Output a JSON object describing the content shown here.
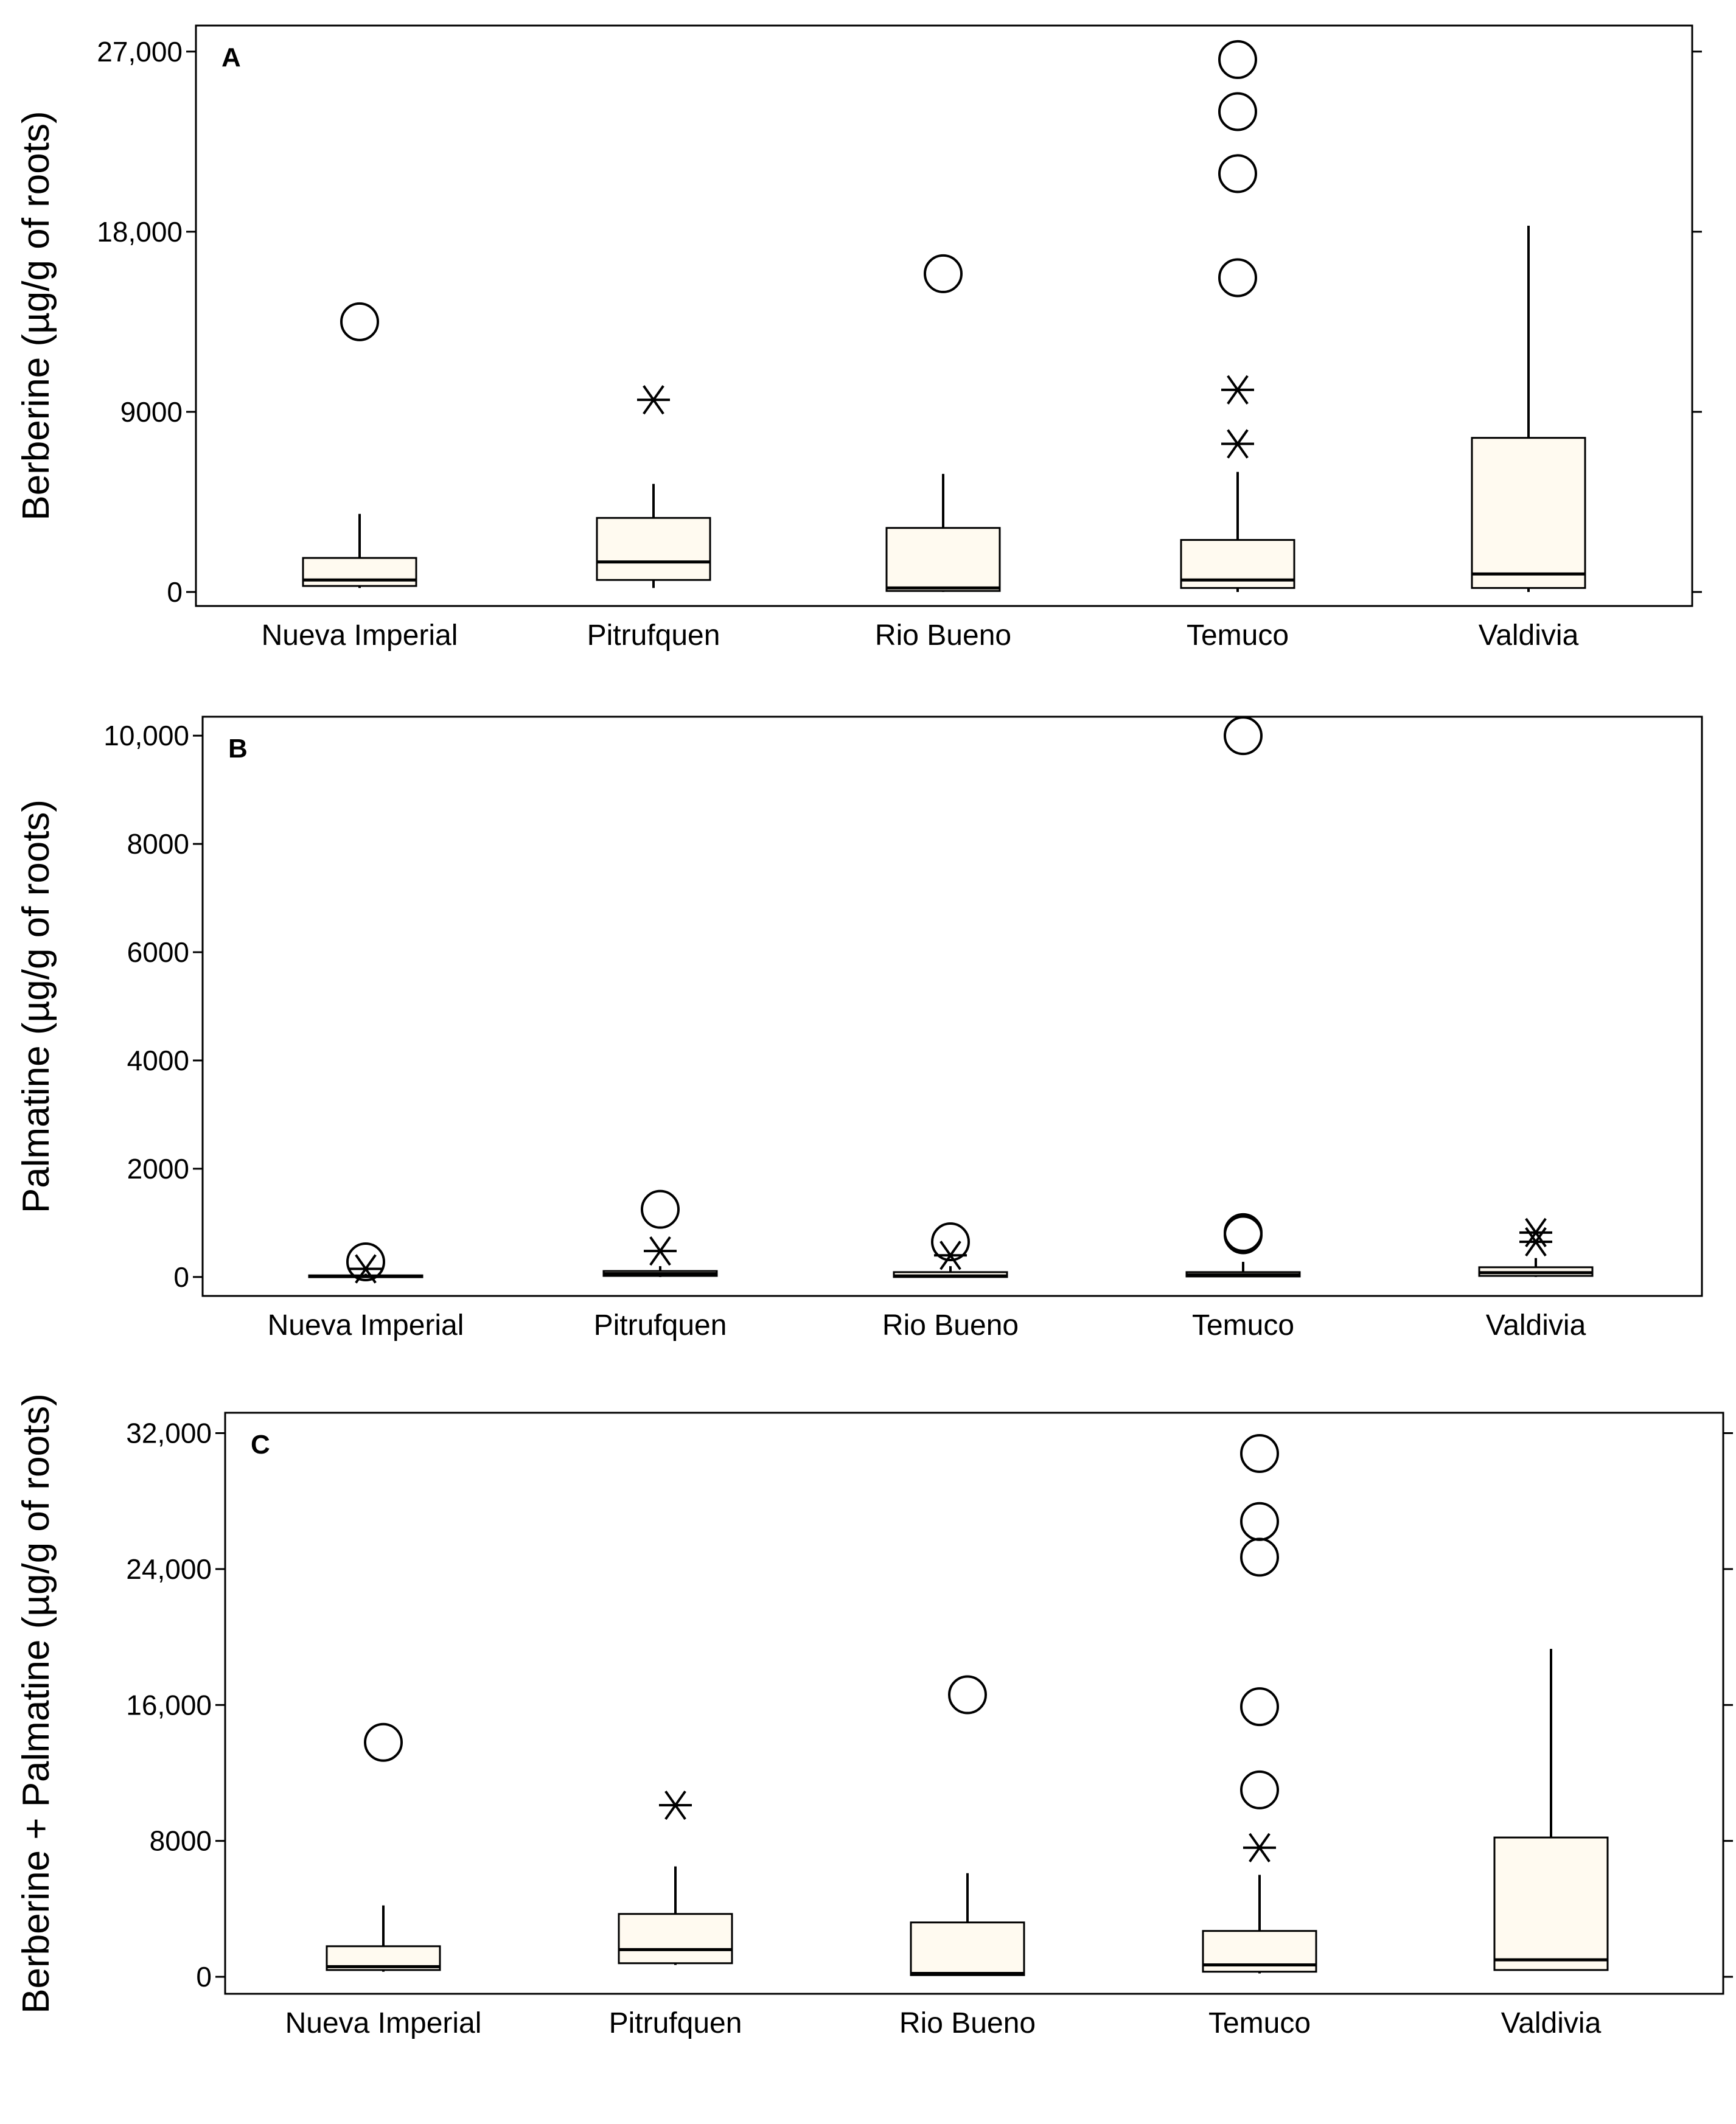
{
  "colors": {
    "box_fill": "#fffaf0",
    "stroke": "#000000",
    "background": "#ffffff"
  },
  "chart_data": [
    {
      "type": "box",
      "panel_label": "A",
      "ylabel": "Berberine (µg/g of roots)",
      "ylim": [
        -700,
        28300
      ],
      "yticks": [
        0,
        9000,
        18000,
        27000
      ],
      "ytick_labels": [
        "0",
        "9000",
        "18,000",
        "27,000"
      ],
      "categories": [
        "Nueva Imperial",
        "Pitrufquen",
        "Rio Bueno",
        "Temuco",
        "Valdivia"
      ],
      "boxes": [
        {
          "category": "Nueva Imperial",
          "whisker_low": 200,
          "q1": 300,
          "median": 600,
          "q3": 1700,
          "whisker_high": 3900
        },
        {
          "category": "Pitrufquen",
          "whisker_low": 200,
          "q1": 600,
          "median": 1500,
          "q3": 3700,
          "whisker_high": 5400
        },
        {
          "category": "Rio Bueno",
          "whisker_low": 0,
          "q1": 50,
          "median": 200,
          "q3": 3200,
          "whisker_high": 5900
        },
        {
          "category": "Temuco",
          "whisker_low": 0,
          "q1": 200,
          "median": 600,
          "q3": 2600,
          "whisker_high": 6000
        },
        {
          "category": "Valdivia",
          "whisker_low": 0,
          "q1": 200,
          "median": 900,
          "q3": 7700,
          "whisker_high": 18300
        }
      ],
      "outliers": [
        {
          "category": "Nueva Imperial",
          "value": 13500,
          "marker": "circle"
        },
        {
          "category": "Pitrufquen",
          "value": 9600,
          "marker": "star"
        },
        {
          "category": "Rio Bueno",
          "value": 15900,
          "marker": "circle"
        },
        {
          "category": "Temuco",
          "value": 26600,
          "marker": "circle"
        },
        {
          "category": "Temuco",
          "value": 24000,
          "marker": "circle"
        },
        {
          "category": "Temuco",
          "value": 20900,
          "marker": "circle"
        },
        {
          "category": "Temuco",
          "value": 15700,
          "marker": "circle"
        },
        {
          "category": "Temuco",
          "value": 10100,
          "marker": "star"
        },
        {
          "category": "Temuco",
          "value": 7400,
          "marker": "star"
        }
      ]
    },
    {
      "type": "box",
      "panel_label": "B",
      "ylabel": "Palmatine (µg/g of roots)",
      "ylim": [
        -350,
        10350
      ],
      "yticks": [
        0,
        2000,
        4000,
        6000,
        8000,
        10000
      ],
      "ytick_labels": [
        "0",
        "2000",
        "4000",
        "6000",
        "8000",
        "10,000"
      ],
      "categories": [
        "Nueva Imperial",
        "Pitrufquen",
        "Rio Bueno",
        "Temuco",
        "Valdivia"
      ],
      "boxes": [
        {
          "category": "Nueva Imperial",
          "whisker_low": 0,
          "q1": 0,
          "median": 10,
          "q3": 30,
          "whisker_high": 60
        },
        {
          "category": "Pitrufquen",
          "whisker_low": 0,
          "q1": 20,
          "median": 60,
          "q3": 110,
          "whisker_high": 200
        },
        {
          "category": "Rio Bueno",
          "whisker_low": 0,
          "q1": 0,
          "median": 20,
          "q3": 90,
          "whisker_high": 200
        },
        {
          "category": "Temuco",
          "whisker_low": 0,
          "q1": 10,
          "median": 40,
          "q3": 90,
          "whisker_high": 280
        },
        {
          "category": "Valdivia",
          "whisker_low": 0,
          "q1": 20,
          "median": 80,
          "q3": 180,
          "whisker_high": 350
        }
      ],
      "outliers": [
        {
          "category": "Nueva Imperial",
          "value": 280,
          "marker": "circle"
        },
        {
          "category": "Nueva Imperial",
          "value": 150,
          "marker": "star"
        },
        {
          "category": "Pitrufquen",
          "value": 1250,
          "marker": "circle"
        },
        {
          "category": "Pitrufquen",
          "value": 480,
          "marker": "star"
        },
        {
          "category": "Rio Bueno",
          "value": 650,
          "marker": "circle"
        },
        {
          "category": "Rio Bueno",
          "value": 400,
          "marker": "star"
        },
        {
          "category": "Temuco",
          "value": 10000,
          "marker": "circle"
        },
        {
          "category": "Temuco",
          "value": 820,
          "marker": "circle"
        },
        {
          "category": "Temuco",
          "value": 780,
          "marker": "circle"
        },
        {
          "category": "Valdivia",
          "value": 820,
          "marker": "star"
        },
        {
          "category": "Valdivia",
          "value": 650,
          "marker": "star"
        }
      ]
    },
    {
      "type": "box",
      "panel_label": "C",
      "ylabel": "Berberine + Palmatine (µg/g of roots)",
      "ylim": [
        -1000,
        33200
      ],
      "yticks": [
        0,
        8000,
        16000,
        24000,
        32000
      ],
      "ytick_labels": [
        "0",
        "8000",
        "16,000",
        "24,000",
        "32,000"
      ],
      "categories": [
        "Nueva Imperial",
        "Pitrufquen",
        "Rio Bueno",
        "Temuco",
        "Valdivia"
      ],
      "boxes": [
        {
          "category": "Nueva Imperial",
          "whisker_low": 300,
          "q1": 400,
          "median": 600,
          "q3": 1800,
          "whisker_high": 4200
        },
        {
          "category": "Pitrufquen",
          "whisker_low": 700,
          "q1": 800,
          "median": 1600,
          "q3": 3700,
          "whisker_high": 6500
        },
        {
          "category": "Rio Bueno",
          "whisker_low": 100,
          "q1": 100,
          "median": 200,
          "q3": 3200,
          "whisker_high": 6100
        },
        {
          "category": "Temuco",
          "whisker_low": 200,
          "q1": 300,
          "median": 700,
          "q3": 2700,
          "whisker_high": 6000
        },
        {
          "category": "Valdivia",
          "whisker_low": 400,
          "q1": 400,
          "median": 1000,
          "q3": 8200,
          "whisker_high": 19300
        }
      ],
      "outliers": [
        {
          "category": "Nueva Imperial",
          "value": 13800,
          "marker": "circle"
        },
        {
          "category": "Pitrufquen",
          "value": 10100,
          "marker": "star"
        },
        {
          "category": "Rio Bueno",
          "value": 16600,
          "marker": "circle"
        },
        {
          "category": "Temuco",
          "value": 30800,
          "marker": "circle"
        },
        {
          "category": "Temuco",
          "value": 26800,
          "marker": "circle"
        },
        {
          "category": "Temuco",
          "value": 24700,
          "marker": "circle"
        },
        {
          "category": "Temuco",
          "value": 15900,
          "marker": "circle"
        },
        {
          "category": "Temuco",
          "value": 11000,
          "marker": "circle"
        },
        {
          "category": "Temuco",
          "value": 7600,
          "marker": "star"
        }
      ]
    }
  ]
}
